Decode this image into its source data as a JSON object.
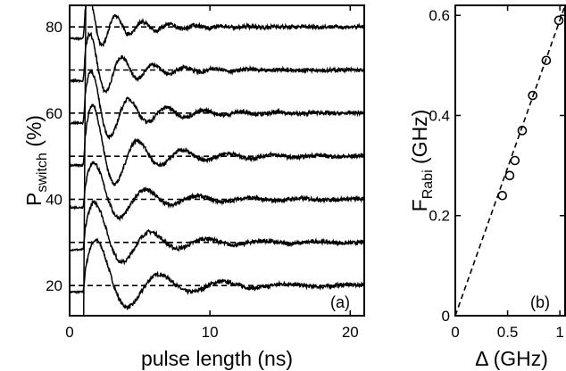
{
  "chart_data": [
    {
      "type": "line",
      "panel_label": "(a)",
      "xlabel": "pulse length (ns)",
      "ylabel_main": "P",
      "ylabel_sub": "switch",
      "ylabel_unit": " (%)",
      "xlim": [
        0,
        21
      ],
      "ylim": [
        13,
        85
      ],
      "xticks": [
        0,
        10,
        20
      ],
      "yticks": [
        20,
        40,
        60,
        80
      ],
      "grid": false,
      "series": [
        {
          "baseline": 20,
          "amplitude": 7.5,
          "frequency_ghz": 0.22,
          "decay_ns": 7.0
        },
        {
          "baseline": 30,
          "amplitude": 6.5,
          "frequency_ghz": 0.25,
          "decay_ns": 6.5
        },
        {
          "baseline": 40,
          "amplitude": 6.0,
          "frequency_ghz": 0.27,
          "decay_ns": 6.0
        },
        {
          "baseline": 50,
          "amplitude": 8.0,
          "frequency_ghz": 0.31,
          "decay_ns": 6.0
        },
        {
          "baseline": 60,
          "amplitude": 6.5,
          "frequency_ghz": 0.37,
          "decay_ns": 5.5
        },
        {
          "baseline": 70,
          "amplitude": 5.5,
          "frequency_ghz": 0.44,
          "decay_ns": 5.0
        },
        {
          "baseline": 80,
          "amplitude": 4.5,
          "frequency_ghz": 0.52,
          "decay_ns": 4.5
        }
      ],
      "reference_lines": [
        20,
        30,
        40,
        50,
        60,
        70,
        80
      ]
    },
    {
      "type": "scatter",
      "panel_label": "(b)",
      "xlabel": "Δ (GHz)",
      "ylabel_main": "F",
      "ylabel_sub": "Rabi",
      "ylabel_unit": " (GHz)",
      "xlim": [
        0,
        1.05
      ],
      "ylim": [
        0,
        0.62
      ],
      "xticks": [
        0,
        0.5,
        1
      ],
      "xtick_labels": [
        "0",
        "0.5",
        "1"
      ],
      "yticks": [
        0,
        0.2,
        0.4,
        0.6
      ],
      "ytick_labels": [
        "0",
        "0.2",
        "0.4",
        "0.6"
      ],
      "grid": false,
      "points": [
        {
          "x": 0.45,
          "y": 0.24
        },
        {
          "x": 0.52,
          "y": 0.28
        },
        {
          "x": 0.57,
          "y": 0.31
        },
        {
          "x": 0.64,
          "y": 0.37
        },
        {
          "x": 0.74,
          "y": 0.44
        },
        {
          "x": 0.87,
          "y": 0.51
        },
        {
          "x": 0.99,
          "y": 0.59
        }
      ],
      "fit_line": {
        "x": [
          0,
          1.05
        ],
        "y": [
          0,
          0.62
        ]
      }
    }
  ]
}
